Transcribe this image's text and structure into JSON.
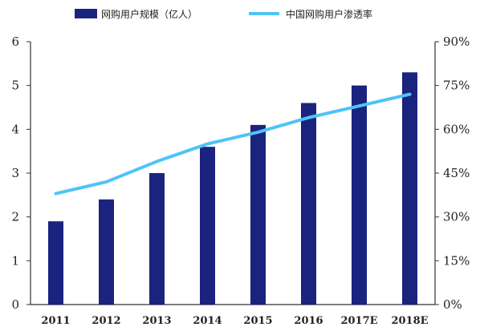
{
  "chart_data": {
    "type": "bar",
    "categories": [
      "2011",
      "2012",
      "2013",
      "2014",
      "2015",
      "2016",
      "2017E",
      "2018E"
    ],
    "series": [
      {
        "name": "网购用户规模（亿人）",
        "type": "bar",
        "axis": "left",
        "color": "#1a237e",
        "values": [
          1.9,
          2.4,
          3.0,
          3.6,
          4.1,
          4.6,
          5.0,
          5.3
        ]
      },
      {
        "name": "中国网购用户渗透率",
        "type": "line",
        "axis": "right",
        "color": "#4fc3f7",
        "values": [
          38,
          42,
          49,
          55,
          59,
          64,
          68,
          72
        ]
      }
    ],
    "y_left": {
      "range": [
        0,
        6
      ],
      "ticks": [
        "0",
        "1",
        "2",
        "3",
        "4",
        "5",
        "6"
      ]
    },
    "y_right": {
      "range": [
        0,
        90
      ],
      "ticks": [
        "0%",
        "15%",
        "30%",
        "45%",
        "60%",
        "75%",
        "90%"
      ]
    },
    "grid": false,
    "legend_position": "top"
  }
}
